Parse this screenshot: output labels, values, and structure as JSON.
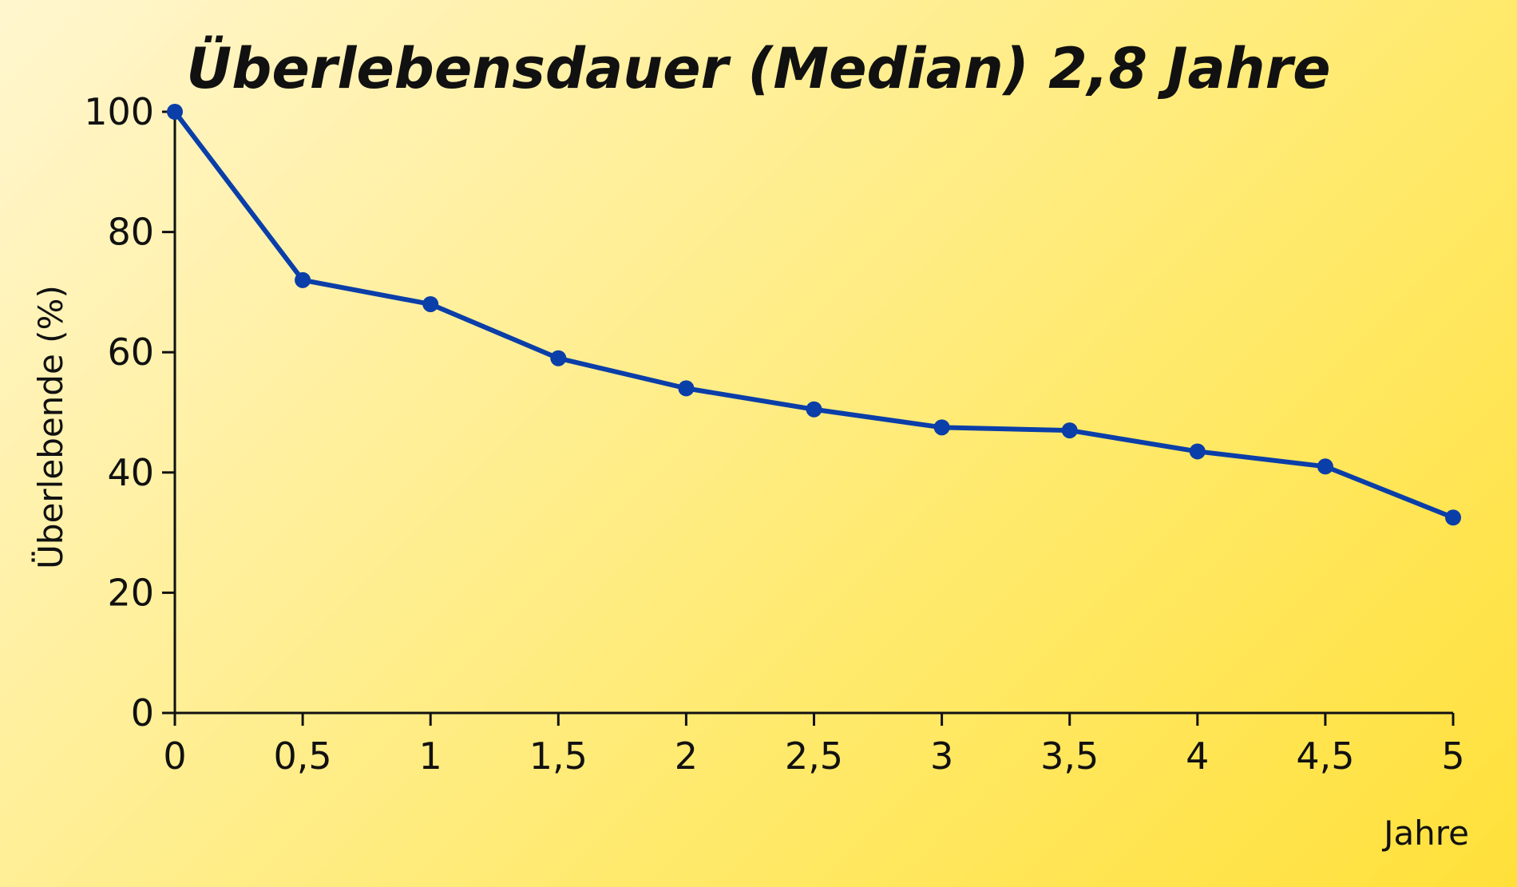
{
  "chart_data": {
    "type": "line",
    "title": "Überlebensdauer (Median) 2,8 Jahre",
    "xlabel": "Jahre",
    "ylabel": "Überlebende (%)",
    "x": [
      0,
      0.5,
      1,
      1.5,
      2,
      2.5,
      3,
      3.5,
      4,
      4.5,
      5
    ],
    "x_tick_labels": [
      "0",
      "0,5",
      "1",
      "1,5",
      "2",
      "2,5",
      "3",
      "3,5",
      "4",
      "4,5",
      "5"
    ],
    "y_ticks": [
      0,
      20,
      40,
      60,
      80,
      100
    ],
    "y_tick_labels": [
      "0",
      "20",
      "40",
      "60",
      "80",
      "100"
    ],
    "series": [
      {
        "values": [
          100,
          72,
          68,
          59,
          54,
          50.5,
          47.5,
          47,
          43.5,
          41,
          32.5
        ]
      }
    ],
    "xlim": [
      0,
      5
    ],
    "ylim": [
      0,
      100
    ],
    "grid": false,
    "legend": "none",
    "colors": {
      "line": "#0a3ea8",
      "axis": "#111111",
      "text": "#111111"
    }
  }
}
